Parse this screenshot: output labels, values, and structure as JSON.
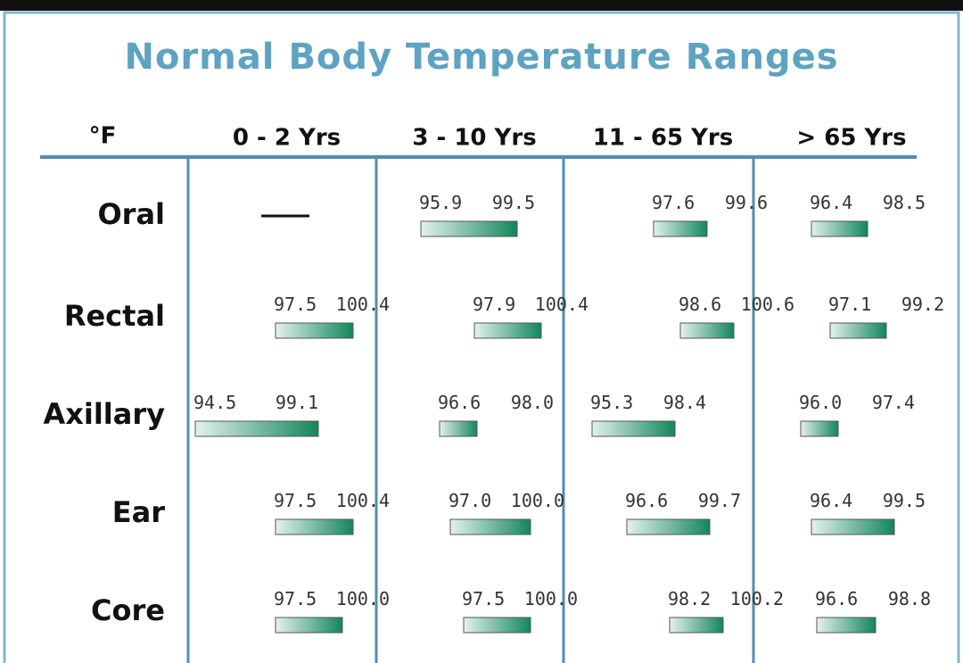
{
  "header": {
    "title": "Normal Body Temperature Ranges"
  },
  "table": {
    "unit": "°F",
    "columns": [
      "0 - 2 Yrs",
      "3 - 10 Yrs",
      "11 - 65 Yrs",
      "> 65 Yrs"
    ],
    "rows": [
      {
        "label": "Oral",
        "cells": [
          null,
          {
            "low": "95.9",
            "high": "99.5"
          },
          {
            "low": "97.6",
            "high": "99.6"
          },
          {
            "low": "96.4",
            "high": "98.5"
          }
        ]
      },
      {
        "label": "Rectal",
        "cells": [
          {
            "low": "97.5",
            "high": "100.4"
          },
          {
            "low": "97.9",
            "high": "100.4"
          },
          {
            "low": "98.6",
            "high": "100.6"
          },
          {
            "low": "97.1",
            "high": "99.2"
          }
        ]
      },
      {
        "label": "Axillary",
        "cells": [
          {
            "low": "94.5",
            "high": "99.1"
          },
          {
            "low": "96.6",
            "high": "98.0"
          },
          {
            "low": "95.3",
            "high": "98.4"
          },
          {
            "low": "96.0",
            "high": "97.4"
          }
        ]
      },
      {
        "label": "Ear",
        "cells": [
          {
            "low": "97.5",
            "high": "100.4"
          },
          {
            "low": "97.0",
            "high": "100.0"
          },
          {
            "low": "96.6",
            "high": "99.7"
          },
          {
            "low": "96.4",
            "high": "99.5"
          }
        ]
      },
      {
        "label": "Core",
        "cells": [
          {
            "low": "97.5",
            "high": "100.0"
          },
          {
            "low": "97.5",
            "high": "100.0"
          },
          {
            "low": "98.2",
            "high": "100.2"
          },
          {
            "low": "96.6",
            "high": "98.8"
          }
        ]
      }
    ]
  }
}
